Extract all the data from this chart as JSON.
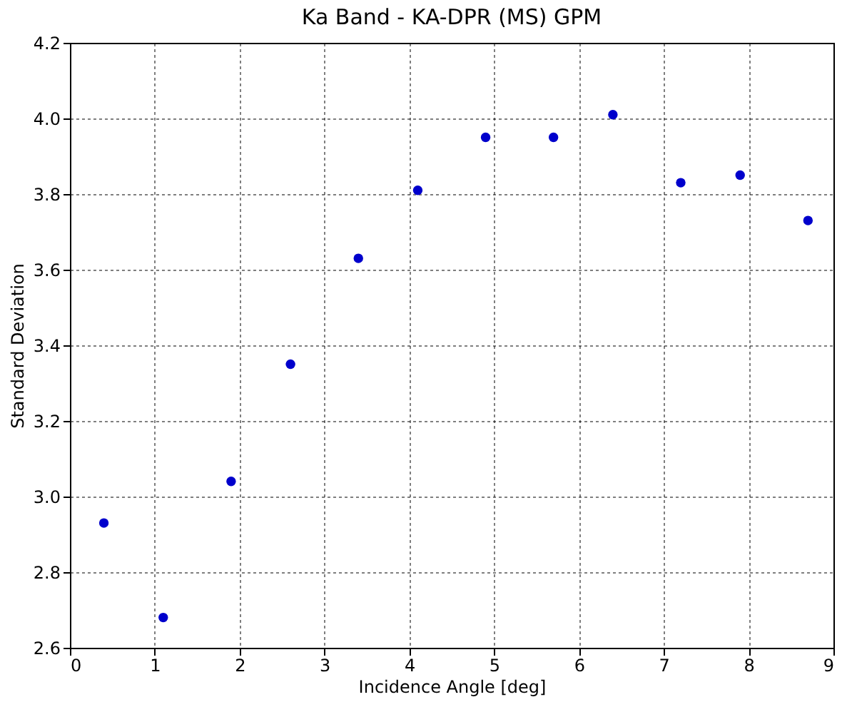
{
  "chart_data": {
    "type": "scatter",
    "title": "Ka Band - KA-DPR (MS) GPM",
    "xlabel": "Incidence Angle [deg]",
    "ylabel": "Standard Deviation",
    "x": [
      0.4,
      1.1,
      1.9,
      2.6,
      3.4,
      4.1,
      4.9,
      5.7,
      6.4,
      7.2,
      7.9,
      8.7
    ],
    "series": [
      {
        "color": "#0000cc",
        "values": [
          2.93,
          2.68,
          3.04,
          3.35,
          3.63,
          3.81,
          3.95,
          3.95,
          4.01,
          3.83,
          3.85,
          3.73
        ]
      }
    ],
    "xlim": [
      0,
      9
    ],
    "xticks": [
      0,
      1,
      2,
      3,
      4,
      5,
      6,
      7,
      8,
      9
    ],
    "ylim": [
      2.6,
      4.2
    ],
    "yticks": [
      2.6,
      2.8,
      {
        "value": 3,
        "label": "3.0"
      },
      3.2,
      3.4,
      3.6,
      3.8,
      {
        "value": 4,
        "label": "4.0"
      },
      4.2
    ],
    "grid": true,
    "marker": "circle",
    "legend": false
  }
}
